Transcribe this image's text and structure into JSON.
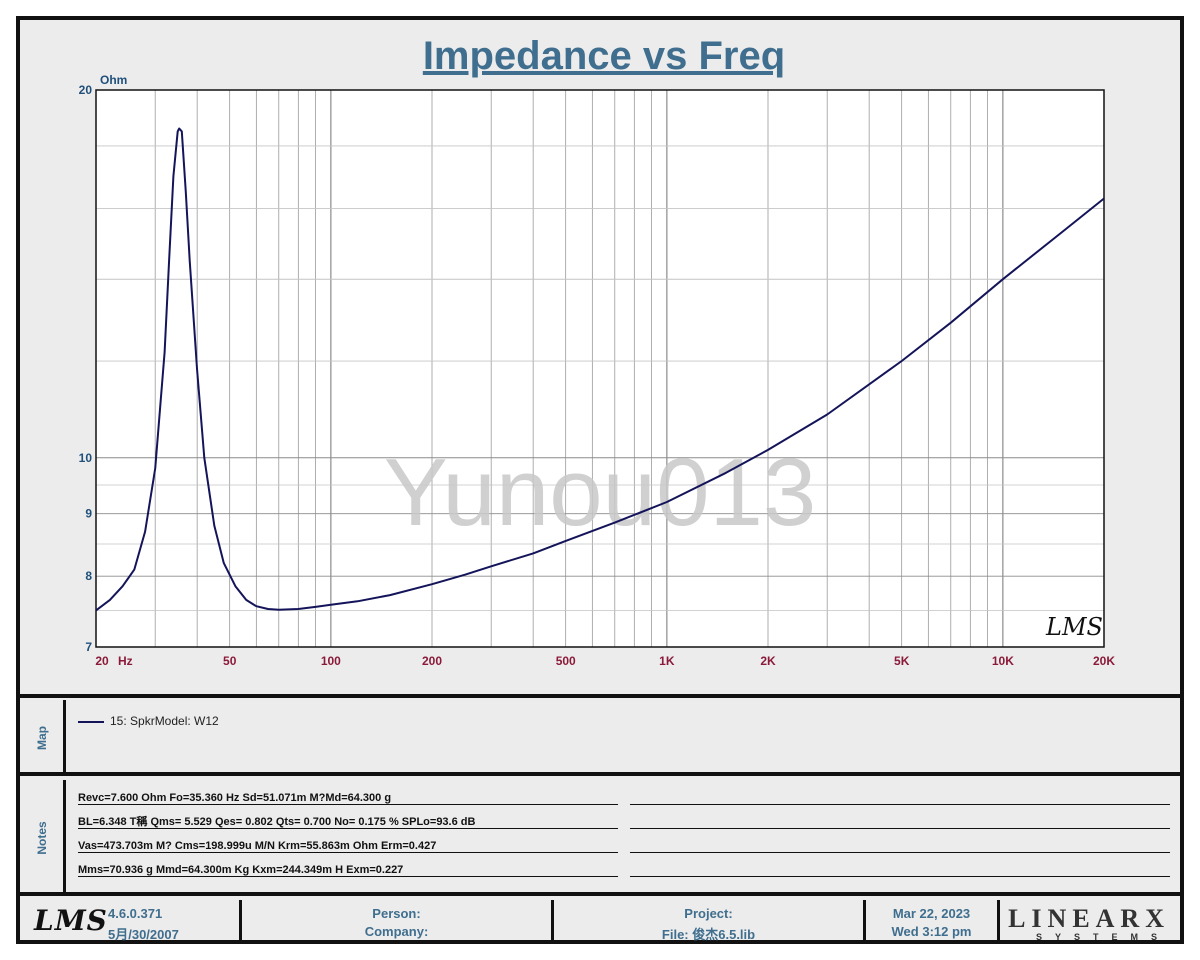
{
  "title": "Impedance vs Freq",
  "watermark": "Yunou013",
  "chart_data": {
    "type": "line",
    "title": "Impedance vs Freq",
    "ylabel": "Ohm",
    "xlabel": "Hz",
    "x_scale": "log",
    "y_scale": "log",
    "xlim": [
      20,
      20000
    ],
    "ylim": [
      7,
      20
    ],
    "x_tick_labels": [
      {
        "value": 20,
        "label": "20"
      },
      {
        "value": 50,
        "label": "50"
      },
      {
        "value": 100,
        "label": "100"
      },
      {
        "value": 200,
        "label": "200"
      },
      {
        "value": 500,
        "label": "500"
      },
      {
        "value": 1000,
        "label": "1K"
      },
      {
        "value": 2000,
        "label": "2K"
      },
      {
        "value": 5000,
        "label": "5K"
      },
      {
        "value": 10000,
        "label": "10K"
      },
      {
        "value": 20000,
        "label": "20K"
      }
    ],
    "y_tick_labels": [
      {
        "value": 7,
        "label": "7"
      },
      {
        "value": 8,
        "label": "8"
      },
      {
        "value": 9,
        "label": "9"
      },
      {
        "value": 10,
        "label": "10"
      },
      {
        "value": 20,
        "label": "20"
      }
    ],
    "grid": true,
    "colors": {
      "line": "#14145a",
      "grid": "#8c8c8c",
      "x_tick": "#8b1a3a",
      "y_tick": "#1f4f7a"
    },
    "series": [
      {
        "name": "15: SpkrModel: W12",
        "x": [
          20,
          22,
          24,
          26,
          28,
          30,
          32,
          33,
          34,
          35,
          35.36,
          36,
          37,
          38,
          40,
          42,
          45,
          48,
          52,
          56,
          60,
          65,
          70,
          80,
          90,
          100,
          120,
          150,
          200,
          250,
          300,
          400,
          500,
          700,
          1000,
          1500,
          2000,
          3000,
          5000,
          7000,
          10000,
          15000,
          20000
        ],
        "y": [
          7.5,
          7.65,
          7.85,
          8.1,
          8.7,
          9.8,
          12.2,
          14.5,
          17.0,
          18.5,
          18.6,
          18.5,
          16.5,
          14.5,
          11.8,
          10.0,
          8.8,
          8.2,
          7.85,
          7.65,
          7.56,
          7.52,
          7.51,
          7.52,
          7.55,
          7.58,
          7.63,
          7.72,
          7.88,
          8.02,
          8.15,
          8.35,
          8.55,
          8.85,
          9.2,
          9.72,
          10.15,
          10.85,
          12.0,
          12.9,
          14.0,
          15.3,
          16.3
        ]
      }
    ]
  },
  "map": {
    "label": "Map",
    "legend_entry": "15: SpkrModel: W12"
  },
  "notes": {
    "label": "Notes",
    "lines": [
      "Revc=7.600 Ohm  Fo=35.360 Hz  Sd=51.071m M?Md=64.300 g",
      "BL=6.348 T稱  Qms= 5.529  Qes= 0.802  Qts= 0.700  No= 0.175 %  SPLo=93.6 dB",
      "Vas=473.703m M? Cms=198.999u M/N  Krm=55.863m Ohm  Erm=0.427",
      "Mms=70.936 g  Mmd=64.300m Kg  Kxm=244.349m H  Exm=0.227"
    ]
  },
  "footer": {
    "logo": "LMS",
    "version": "4.6.0.371",
    "build_date": "5月/30/2007",
    "person_label": "Person:",
    "company_label": "Company:",
    "project_label": "Project:",
    "file_label": "File: 俊杰6.5.lib",
    "date": "Mar 22, 2023",
    "day_time": "Wed  3:12 pm",
    "brand_main": "LINEARX",
    "brand_sub": "SYSTEMS"
  },
  "plot_logo": "LMS"
}
